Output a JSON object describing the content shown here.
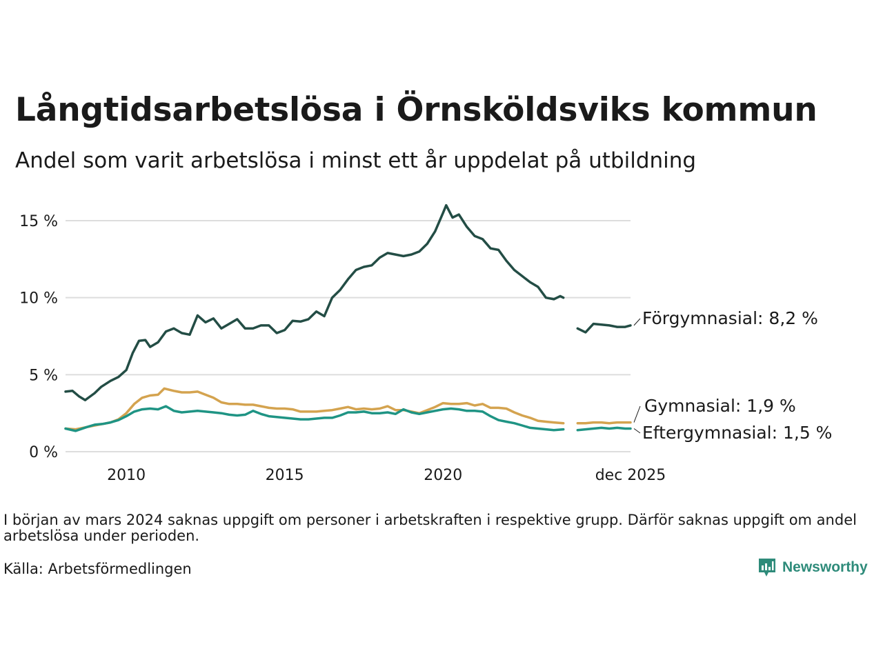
{
  "header": {
    "title": "Långtidsarbetslösa i Örnsköldsviks kommun",
    "subtitle": "Andel som varit arbetslösa i minst ett år uppdelat på utbildning"
  },
  "footer": {
    "note": "I början av mars 2024 saknas uppgift om personer i arbetskraften i respektive grupp. Därför saknas uppgift om andel arbetslösa under perioden.",
    "source": "Källa: Arbetsförmedlingen",
    "brand": "Newsworthy"
  },
  "colors": {
    "forgymnasial": "#234d45",
    "gymnasial": "#d4a34f",
    "eftergymnasial": "#1f9484",
    "grid": "#dddddd",
    "brand": "#2e8b7a"
  },
  "chart_data": {
    "type": "line",
    "title": "Långtidsarbetslösa i Örnsköldsviks kommun",
    "xlabel": "",
    "ylabel": "",
    "xlim": [
      2008.08,
      2025.92
    ],
    "ylim": [
      0,
      16
    ],
    "yticks": [
      0,
      5,
      10,
      15
    ],
    "ytick_labels": [
      "0 %",
      "5 %",
      "10 %",
      "15 %"
    ],
    "xticks": [
      2010,
      2015,
      2020,
      2025.92
    ],
    "xtick_labels": [
      "2010",
      "2015",
      "2020",
      "dec 2025"
    ],
    "gap": [
      2023.8,
      2024.25
    ],
    "series": [
      {
        "name": "Förgymnasial",
        "label": "Förgymnasial: 8,2 %",
        "color": "forgymnasial",
        "points": [
          [
            2008.08,
            3.9
          ],
          [
            2008.3,
            3.95
          ],
          [
            2008.5,
            3.6
          ],
          [
            2008.7,
            3.35
          ],
          [
            2009.0,
            3.8
          ],
          [
            2009.2,
            4.2
          ],
          [
            2009.5,
            4.6
          ],
          [
            2009.75,
            4.85
          ],
          [
            2010.0,
            5.3
          ],
          [
            2010.2,
            6.4
          ],
          [
            2010.4,
            7.2
          ],
          [
            2010.6,
            7.25
          ],
          [
            2010.75,
            6.8
          ],
          [
            2011.0,
            7.1
          ],
          [
            2011.25,
            7.8
          ],
          [
            2011.5,
            8.0
          ],
          [
            2011.75,
            7.7
          ],
          [
            2012.0,
            7.6
          ],
          [
            2012.25,
            8.85
          ],
          [
            2012.5,
            8.4
          ],
          [
            2012.75,
            8.65
          ],
          [
            2013.0,
            8.0
          ],
          [
            2013.25,
            8.3
          ],
          [
            2013.5,
            8.6
          ],
          [
            2013.75,
            8.0
          ],
          [
            2014.0,
            8.0
          ],
          [
            2014.25,
            8.2
          ],
          [
            2014.5,
            8.2
          ],
          [
            2014.75,
            7.7
          ],
          [
            2015.0,
            7.9
          ],
          [
            2015.25,
            8.5
          ],
          [
            2015.5,
            8.45
          ],
          [
            2015.75,
            8.6
          ],
          [
            2016.0,
            9.1
          ],
          [
            2016.25,
            8.8
          ],
          [
            2016.5,
            10.0
          ],
          [
            2016.75,
            10.5
          ],
          [
            2017.0,
            11.2
          ],
          [
            2017.25,
            11.8
          ],
          [
            2017.5,
            12.0
          ],
          [
            2017.75,
            12.1
          ],
          [
            2018.0,
            12.6
          ],
          [
            2018.25,
            12.9
          ],
          [
            2018.5,
            12.8
          ],
          [
            2018.75,
            12.7
          ],
          [
            2019.0,
            12.8
          ],
          [
            2019.25,
            13.0
          ],
          [
            2019.5,
            13.5
          ],
          [
            2019.75,
            14.3
          ],
          [
            2020.0,
            15.5
          ],
          [
            2020.1,
            16.0
          ],
          [
            2020.3,
            15.2
          ],
          [
            2020.5,
            15.4
          ],
          [
            2020.75,
            14.6
          ],
          [
            2021.0,
            14.0
          ],
          [
            2021.25,
            13.8
          ],
          [
            2021.5,
            13.2
          ],
          [
            2021.75,
            13.1
          ],
          [
            2022.0,
            12.4
          ],
          [
            2022.25,
            11.8
          ],
          [
            2022.5,
            11.4
          ],
          [
            2022.75,
            11.0
          ],
          [
            2023.0,
            10.7
          ],
          [
            2023.25,
            10.0
          ],
          [
            2023.5,
            9.9
          ],
          [
            2023.7,
            10.1
          ],
          [
            2023.8,
            10.0
          ],
          [
            2024.25,
            8.0
          ],
          [
            2024.5,
            7.75
          ],
          [
            2024.75,
            8.3
          ],
          [
            2025.0,
            8.25
          ],
          [
            2025.25,
            8.2
          ],
          [
            2025.5,
            8.1
          ],
          [
            2025.75,
            8.1
          ],
          [
            2025.92,
            8.2
          ]
        ]
      },
      {
        "name": "Gymnasial",
        "label": "Gymnasial: 1,9 %",
        "color": "gymnasial",
        "points": [
          [
            2008.08,
            1.5
          ],
          [
            2008.4,
            1.45
          ],
          [
            2008.75,
            1.6
          ],
          [
            2009.0,
            1.7
          ],
          [
            2009.25,
            1.8
          ],
          [
            2009.5,
            1.9
          ],
          [
            2009.75,
            2.1
          ],
          [
            2010.0,
            2.5
          ],
          [
            2010.25,
            3.1
          ],
          [
            2010.5,
            3.5
          ],
          [
            2010.75,
            3.65
          ],
          [
            2011.0,
            3.7
          ],
          [
            2011.2,
            4.1
          ],
          [
            2011.5,
            3.95
          ],
          [
            2011.75,
            3.85
          ],
          [
            2012.0,
            3.85
          ],
          [
            2012.25,
            3.9
          ],
          [
            2012.5,
            3.7
          ],
          [
            2012.75,
            3.5
          ],
          [
            2013.0,
            3.2
          ],
          [
            2013.25,
            3.1
          ],
          [
            2013.5,
            3.1
          ],
          [
            2013.75,
            3.05
          ],
          [
            2014.0,
            3.05
          ],
          [
            2014.25,
            2.95
          ],
          [
            2014.5,
            2.85
          ],
          [
            2014.75,
            2.8
          ],
          [
            2015.0,
            2.8
          ],
          [
            2015.25,
            2.75
          ],
          [
            2015.5,
            2.6
          ],
          [
            2015.75,
            2.6
          ],
          [
            2016.0,
            2.6
          ],
          [
            2016.25,
            2.65
          ],
          [
            2016.5,
            2.7
          ],
          [
            2016.75,
            2.8
          ],
          [
            2017.0,
            2.9
          ],
          [
            2017.25,
            2.75
          ],
          [
            2017.5,
            2.8
          ],
          [
            2017.75,
            2.75
          ],
          [
            2018.0,
            2.8
          ],
          [
            2018.25,
            2.95
          ],
          [
            2018.5,
            2.7
          ],
          [
            2018.75,
            2.7
          ],
          [
            2019.0,
            2.6
          ],
          [
            2019.25,
            2.5
          ],
          [
            2019.5,
            2.7
          ],
          [
            2019.75,
            2.9
          ],
          [
            2020.0,
            3.15
          ],
          [
            2020.25,
            3.1
          ],
          [
            2020.5,
            3.1
          ],
          [
            2020.75,
            3.15
          ],
          [
            2021.0,
            3.0
          ],
          [
            2021.25,
            3.1
          ],
          [
            2021.5,
            2.85
          ],
          [
            2021.75,
            2.85
          ],
          [
            2022.0,
            2.8
          ],
          [
            2022.25,
            2.55
          ],
          [
            2022.5,
            2.35
          ],
          [
            2022.75,
            2.2
          ],
          [
            2023.0,
            2.0
          ],
          [
            2023.25,
            1.95
          ],
          [
            2023.5,
            1.9
          ],
          [
            2023.8,
            1.85
          ],
          [
            2024.25,
            1.85
          ],
          [
            2024.5,
            1.85
          ],
          [
            2024.75,
            1.9
          ],
          [
            2025.0,
            1.9
          ],
          [
            2025.25,
            1.85
          ],
          [
            2025.5,
            1.9
          ],
          [
            2025.75,
            1.9
          ],
          [
            2025.92,
            1.9
          ]
        ]
      },
      {
        "name": "Eftergymnasial",
        "label": "Eftergymnasial: 1,5 %",
        "color": "eftergymnasial",
        "points": [
          [
            2008.08,
            1.5
          ],
          [
            2008.4,
            1.35
          ],
          [
            2008.75,
            1.6
          ],
          [
            2009.0,
            1.75
          ],
          [
            2009.25,
            1.8
          ],
          [
            2009.5,
            1.9
          ],
          [
            2009.75,
            2.05
          ],
          [
            2010.0,
            2.3
          ],
          [
            2010.25,
            2.6
          ],
          [
            2010.5,
            2.75
          ],
          [
            2010.75,
            2.8
          ],
          [
            2011.0,
            2.75
          ],
          [
            2011.25,
            2.95
          ],
          [
            2011.5,
            2.65
          ],
          [
            2011.75,
            2.55
          ],
          [
            2012.0,
            2.6
          ],
          [
            2012.25,
            2.65
          ],
          [
            2012.5,
            2.6
          ],
          [
            2012.75,
            2.55
          ],
          [
            2013.0,
            2.5
          ],
          [
            2013.25,
            2.4
          ],
          [
            2013.5,
            2.35
          ],
          [
            2013.75,
            2.4
          ],
          [
            2014.0,
            2.65
          ],
          [
            2014.25,
            2.45
          ],
          [
            2014.5,
            2.3
          ],
          [
            2014.75,
            2.25
          ],
          [
            2015.0,
            2.2
          ],
          [
            2015.25,
            2.15
          ],
          [
            2015.5,
            2.1
          ],
          [
            2015.75,
            2.1
          ],
          [
            2016.0,
            2.15
          ],
          [
            2016.25,
            2.2
          ],
          [
            2016.5,
            2.2
          ],
          [
            2016.75,
            2.35
          ],
          [
            2017.0,
            2.55
          ],
          [
            2017.25,
            2.55
          ],
          [
            2017.5,
            2.6
          ],
          [
            2017.75,
            2.5
          ],
          [
            2018.0,
            2.5
          ],
          [
            2018.25,
            2.55
          ],
          [
            2018.5,
            2.45
          ],
          [
            2018.75,
            2.75
          ],
          [
            2019.0,
            2.55
          ],
          [
            2019.25,
            2.45
          ],
          [
            2019.5,
            2.55
          ],
          [
            2019.75,
            2.65
          ],
          [
            2020.0,
            2.75
          ],
          [
            2020.25,
            2.8
          ],
          [
            2020.5,
            2.75
          ],
          [
            2020.75,
            2.65
          ],
          [
            2021.0,
            2.65
          ],
          [
            2021.25,
            2.6
          ],
          [
            2021.5,
            2.3
          ],
          [
            2021.75,
            2.05
          ],
          [
            2022.0,
            1.95
          ],
          [
            2022.25,
            1.85
          ],
          [
            2022.5,
            1.7
          ],
          [
            2022.75,
            1.55
          ],
          [
            2023.0,
            1.5
          ],
          [
            2023.25,
            1.45
          ],
          [
            2023.5,
            1.4
          ],
          [
            2023.8,
            1.45
          ],
          [
            2024.25,
            1.4
          ],
          [
            2024.5,
            1.45
          ],
          [
            2024.75,
            1.5
          ],
          [
            2025.0,
            1.55
          ],
          [
            2025.25,
            1.5
          ],
          [
            2025.5,
            1.55
          ],
          [
            2025.75,
            1.5
          ],
          [
            2025.92,
            1.5
          ]
        ]
      }
    ]
  }
}
